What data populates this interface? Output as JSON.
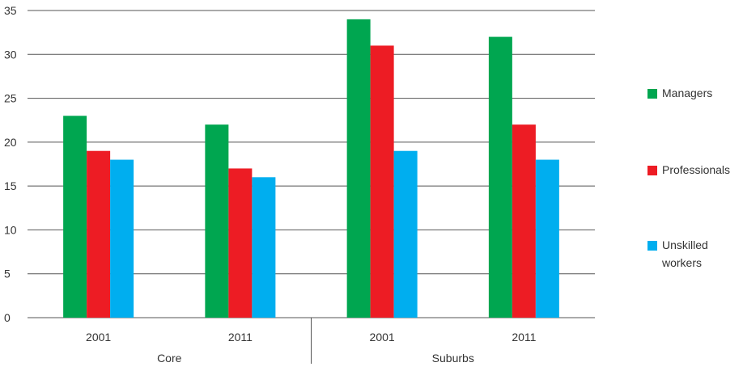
{
  "chart_data": {
    "type": "bar",
    "title": "",
    "xlabel": "",
    "ylabel": "",
    "ylim": [
      0,
      35
    ],
    "yticks": [
      0,
      5,
      10,
      15,
      20,
      25,
      30,
      35
    ],
    "grid": true,
    "legend_position": "right",
    "categories": [
      "2001",
      "2011",
      "2001",
      "2011"
    ],
    "groups": [
      {
        "label": "Core",
        "categories": [
          "2001",
          "2011"
        ]
      },
      {
        "label": "Suburbs",
        "categories": [
          "2001",
          "2011"
        ]
      }
    ],
    "series": [
      {
        "name": "Managers",
        "color": "#00a650",
        "values": [
          23,
          22,
          34,
          32
        ]
      },
      {
        "name": "Professionals",
        "color": "#ed1c24",
        "values": [
          19,
          17,
          31,
          22
        ]
      },
      {
        "name": "Unskilled workers",
        "color": "#00aeef",
        "values": [
          18,
          16,
          19,
          18
        ]
      }
    ]
  }
}
